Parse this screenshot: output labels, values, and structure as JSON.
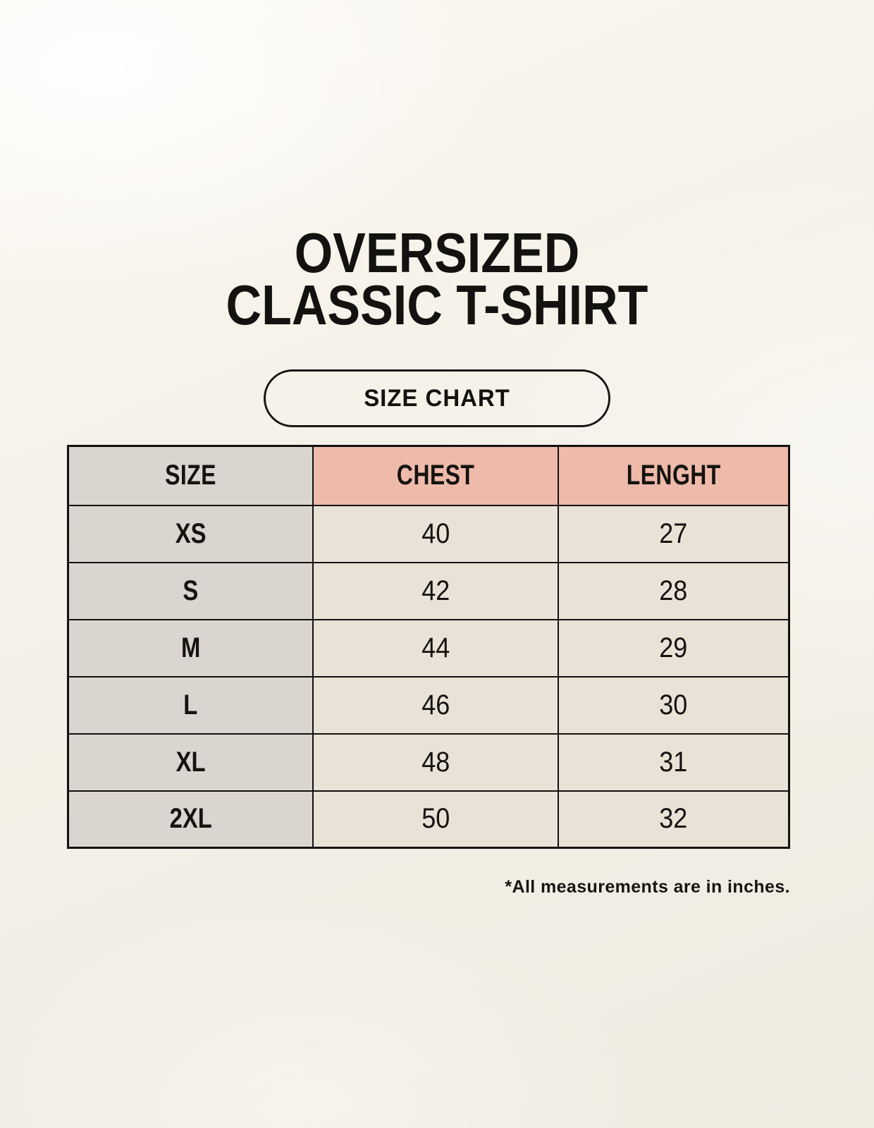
{
  "page": {
    "title_line1": "OVERSIZED",
    "title_line2": "CLASSIC T-SHIRT"
  },
  "badge": {
    "label": "SIZE CHART"
  },
  "table": {
    "headers": {
      "size": "SIZE",
      "chest": "CHEST",
      "length": "LENGHT"
    },
    "rows": [
      {
        "size": "XS",
        "chest": "40",
        "length": "27"
      },
      {
        "size": "S",
        "chest": "42",
        "length": "28"
      },
      {
        "size": "M",
        "chest": "44",
        "length": "29"
      },
      {
        "size": "L",
        "chest": "46",
        "length": "30"
      },
      {
        "size": "XL",
        "chest": "48",
        "length": "31"
      },
      {
        "size": "2XL",
        "chest": "50",
        "length": "32"
      }
    ],
    "footnote": "*All measurements are in inches."
  },
  "colors": {
    "background": "#f5f1e8",
    "header_pink": "#eebbaa",
    "size_column_gray": "#dbd5cf",
    "data_cell_cream": "#e9e2d6",
    "border_black": "#131110",
    "text": "#141210"
  },
  "chart_data": {
    "type": "table",
    "title": "OVERSIZED CLASSIC T-SHIRT",
    "subtitle": "SIZE CHART",
    "columns": [
      "SIZE",
      "CHEST",
      "LENGHT"
    ],
    "rows": [
      [
        "XS",
        40,
        27
      ],
      [
        "S",
        42,
        28
      ],
      [
        "M",
        44,
        29
      ],
      [
        "L",
        46,
        30
      ],
      [
        "XL",
        48,
        31
      ],
      [
        "2XL",
        50,
        32
      ]
    ],
    "note": "*All measurements are in inches.",
    "units": "inches"
  }
}
